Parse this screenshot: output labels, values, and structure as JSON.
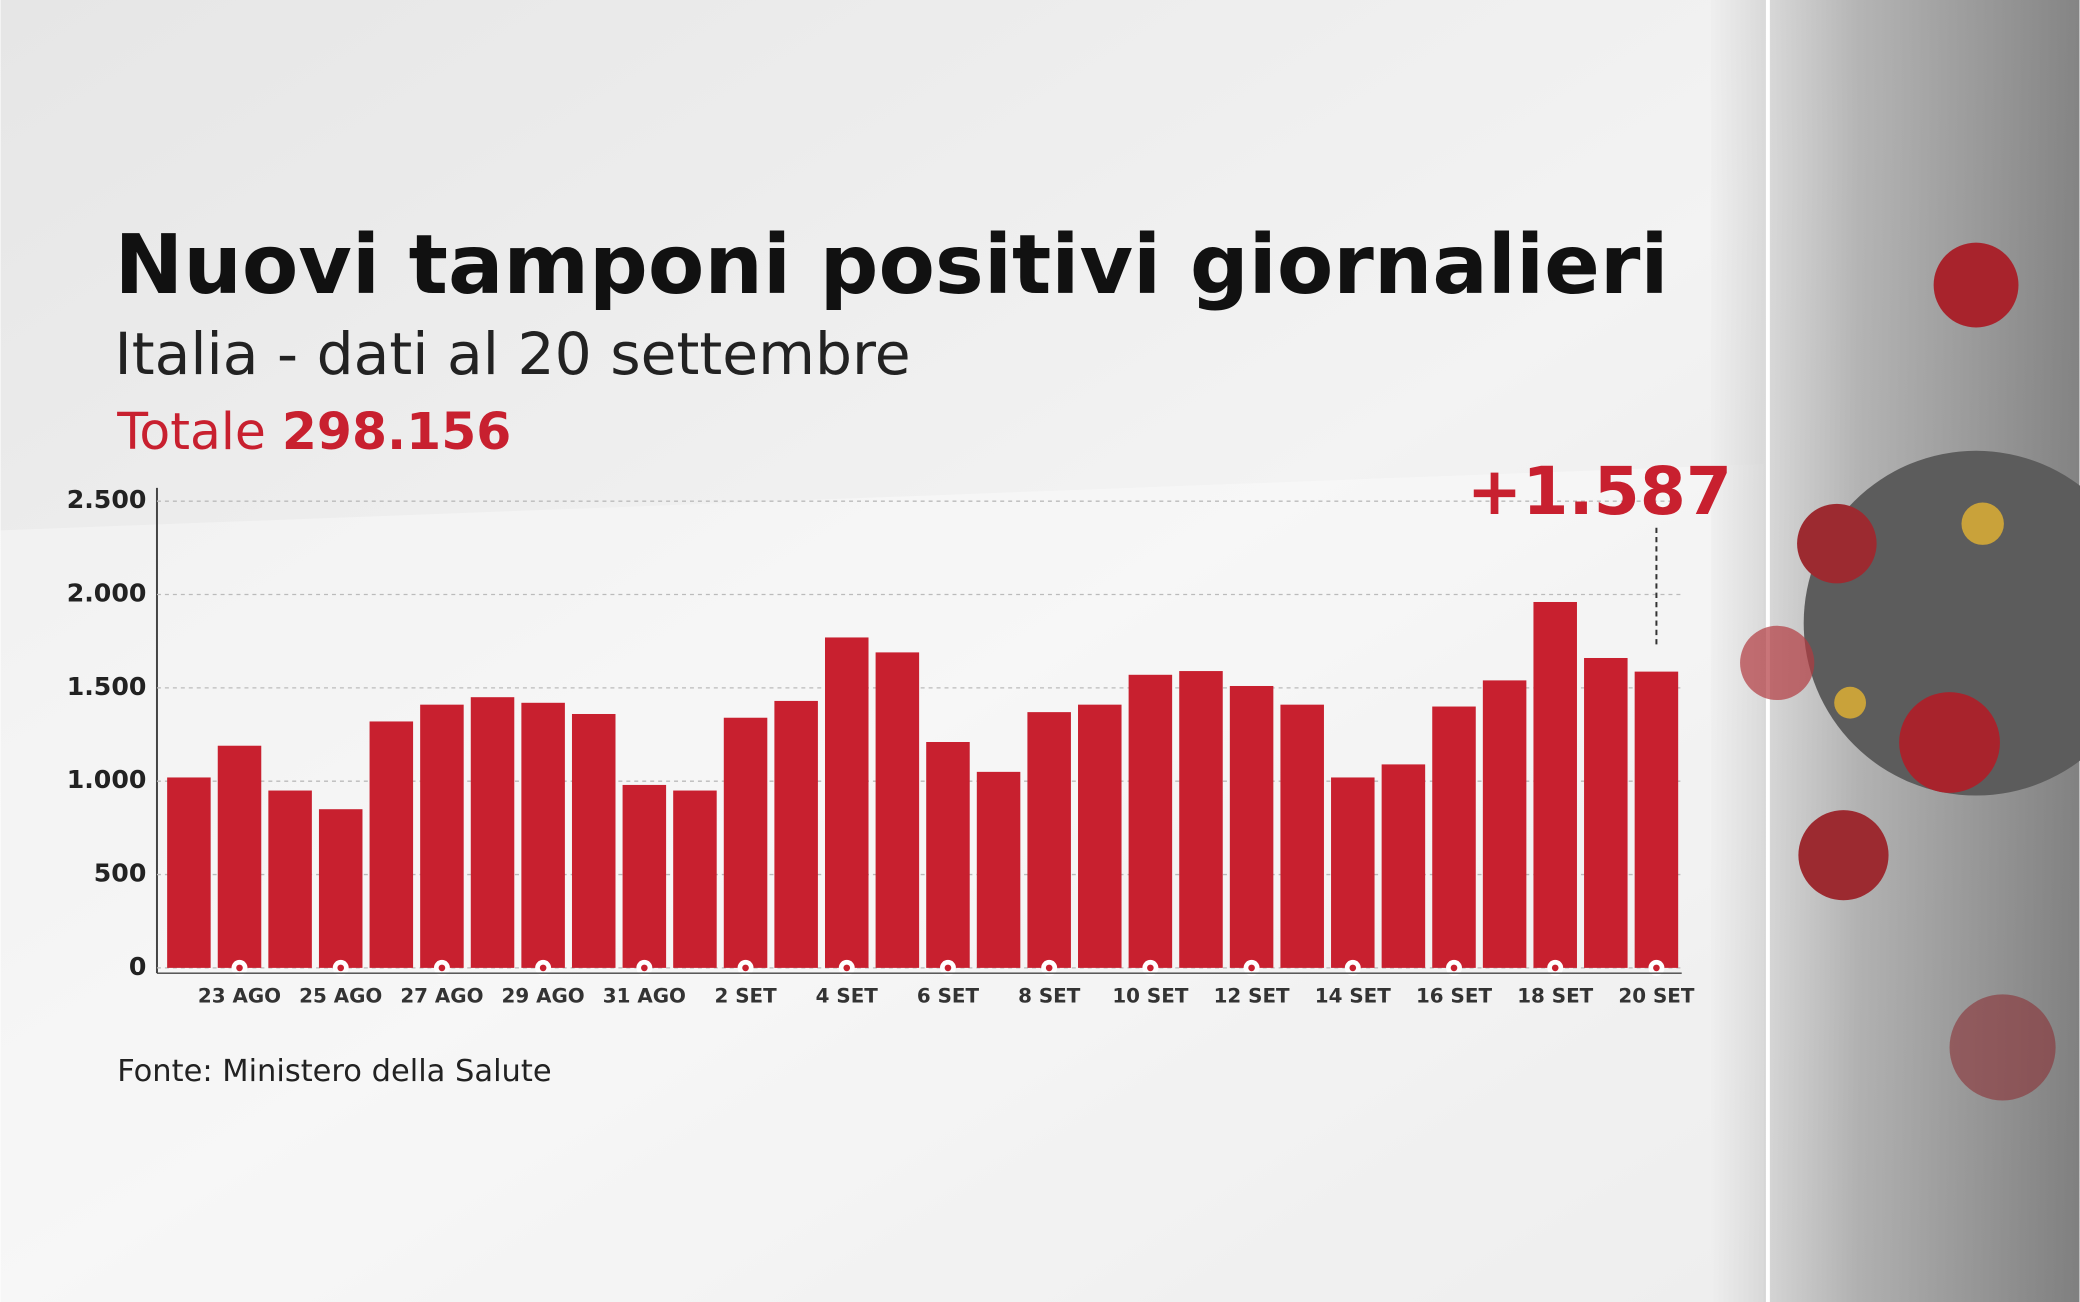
{
  "chart_data": {
    "type": "bar",
    "title": "Nuovi tamponi positivi giornalieri",
    "subtitle": "Italia - dati al 20 settembre",
    "total_label": "Totale",
    "total_value": "298.156",
    "source": "Fonte: Ministero della Salute",
    "categories": [
      null,
      "23 AGO",
      null,
      "25 AGO",
      null,
      "27 AGO",
      null,
      "29 AGO",
      null,
      "31 AGO",
      null,
      "2 SET",
      null,
      "4 SET",
      null,
      "6 SET",
      null,
      "8 SET",
      null,
      "10 SET",
      null,
      "12 SET",
      null,
      "14 SET",
      null,
      "16 SET",
      null,
      "18 SET",
      null,
      "20 SET"
    ],
    "values": [
      1020,
      1190,
      950,
      850,
      1320,
      1410,
      1450,
      1420,
      1360,
      980,
      950,
      1340,
      1430,
      1770,
      1690,
      1210,
      1050,
      1370,
      1410,
      1570,
      1590,
      1510,
      1410,
      1020,
      1090,
      1400,
      1540,
      1960,
      1660,
      1587
    ],
    "value_labels": [
      null,
      null,
      null,
      null,
      null,
      null,
      null,
      null,
      null,
      null,
      null,
      null,
      null,
      null,
      null,
      null,
      null,
      null,
      null,
      null,
      null,
      null,
      null,
      null,
      null,
      null,
      null,
      null,
      null,
      "+1.587"
    ],
    "color": "#c8202f",
    "ylim": [
      0,
      2500
    ],
    "yticks": [
      0,
      500,
      {
        "value": 1000,
        "label": "1.000"
      },
      {
        "value": 1500,
        "label": "1.500"
      },
      {
        "value": 2000,
        "label": "2.000"
      },
      {
        "value": 2500,
        "label": "2.500"
      }
    ],
    "grid": true
  }
}
